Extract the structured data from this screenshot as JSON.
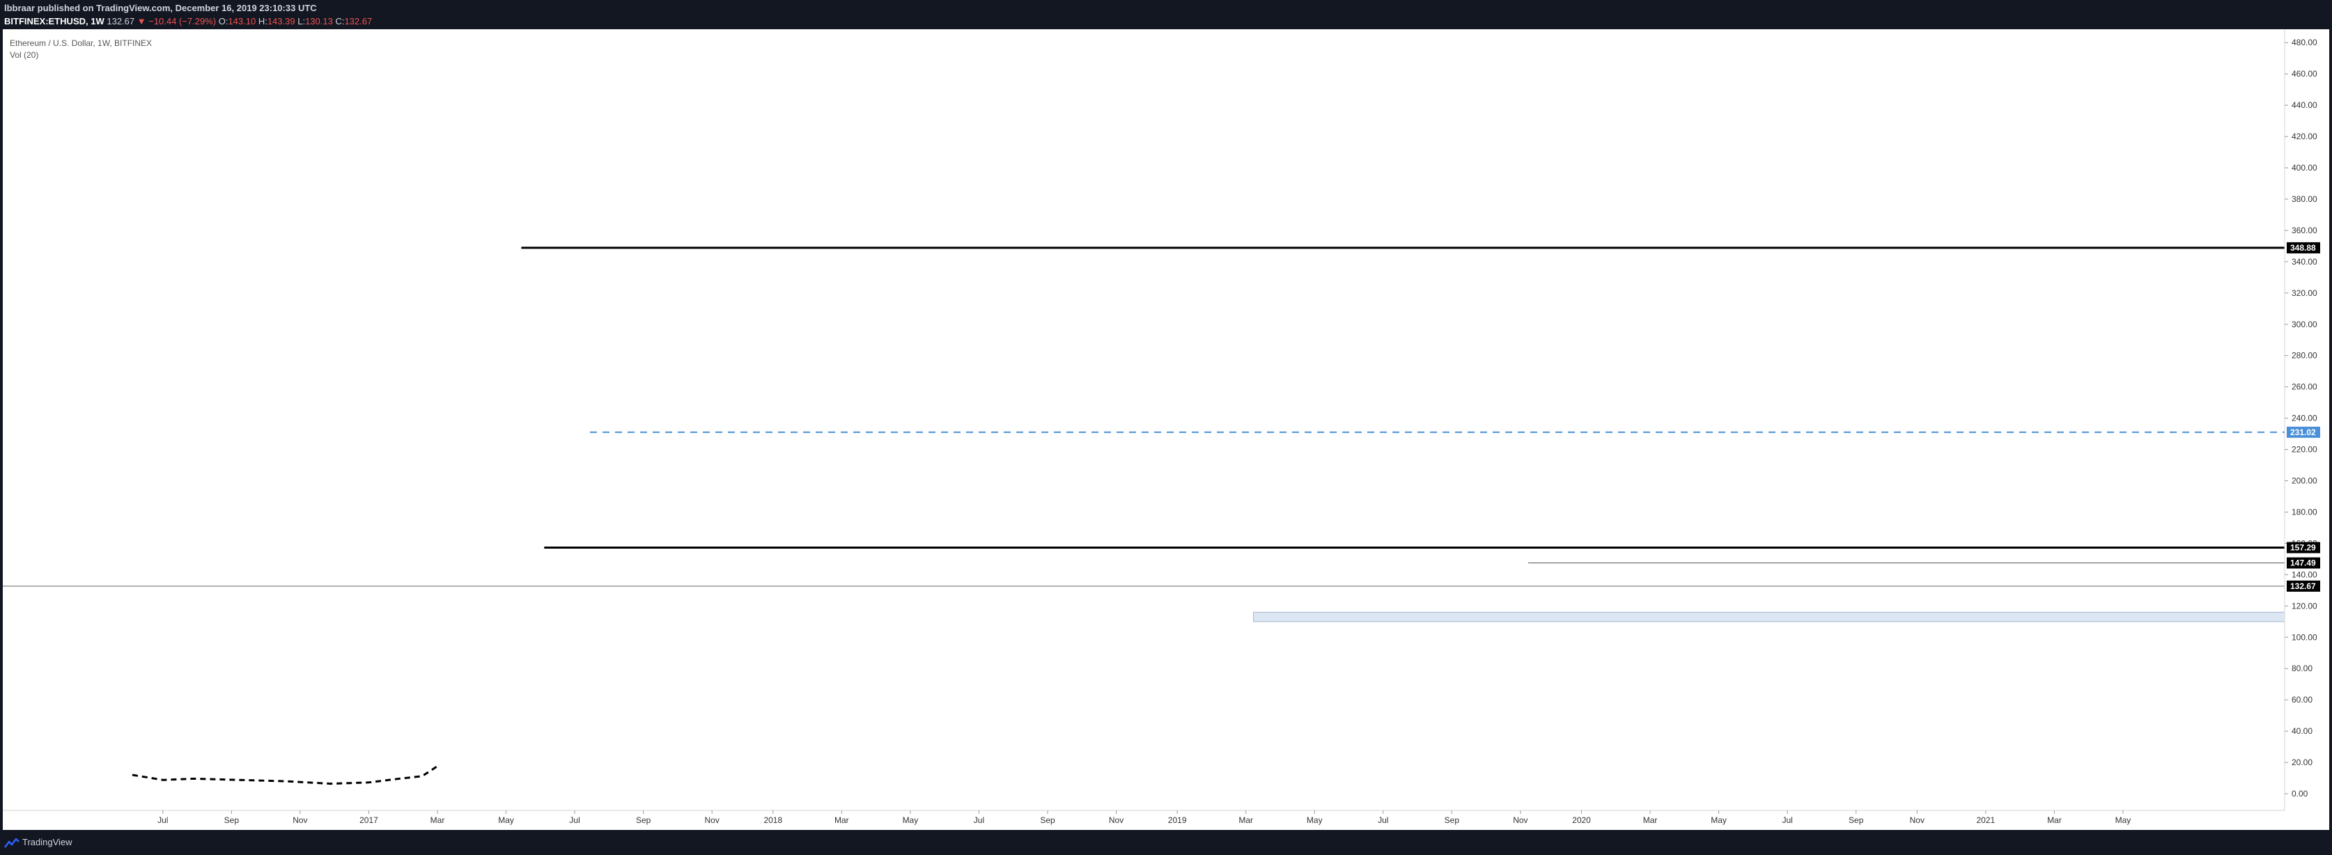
{
  "header": {
    "publisher_line": "lbbraar published on TradingView.com, December 16, 2019 23:10:33 UTC",
    "symbol": "BITFINEX:ETHUSD, 1W",
    "last": "132.67",
    "change": "▼ −10.44 (−7.29%)",
    "ohlc": {
      "o_label": "O:",
      "o": "143.10",
      "h_label": "H:",
      "h": "143.39",
      "l_label": "L:",
      "l": "130.13",
      "c_label": "C:",
      "c": "132.67"
    }
  },
  "legend": {
    "title": "Ethereum / U.S. Dollar, 1W, BITFINEX",
    "volume": "Vol (20)"
  },
  "footer": {
    "brand": "TradingView"
  },
  "colors": {
    "up_volume": "#8fd3c9",
    "down_volume": "#f4a3a3",
    "line_black": "#000000",
    "dashed_line": "#4a90d9",
    "zone_fill": "#dde7f3"
  },
  "chart_data": {
    "type": "candlestick",
    "title": "",
    "ylim": [
      0,
      485
    ],
    "y_ticks": [
      0,
      20,
      40,
      60,
      80,
      100,
      120,
      140,
      160,
      180,
      200,
      220,
      240,
      260,
      280,
      300,
      320,
      340,
      360,
      380,
      400,
      420,
      440,
      460,
      480
    ],
    "y_tick_labels": [
      "0.00",
      "20.00",
      "40.00",
      "60.00",
      "80.00",
      "100.00",
      "120.00",
      "140.00",
      "160.00",
      "180.00",
      "200.00",
      "220.00",
      "240.00",
      "260.00",
      "280.00",
      "300.00",
      "320.00",
      "340.00",
      "360.00",
      "380.00",
      "400.00",
      "420.00",
      "440.00",
      "460.00",
      "480.00"
    ],
    "x_ticks": [
      {
        "label": "Jul",
        "i": 4
      },
      {
        "label": "Sep",
        "i": 13
      },
      {
        "label": "Nov",
        "i": 22
      },
      {
        "label": "2017",
        "i": 31
      },
      {
        "label": "Mar",
        "i": 40
      },
      {
        "label": "May",
        "i": 49
      },
      {
        "label": "Jul",
        "i": 58
      },
      {
        "label": "Sep",
        "i": 67
      },
      {
        "label": "Nov",
        "i": 76
      },
      {
        "label": "2018",
        "i": 84
      },
      {
        "label": "Mar",
        "i": 93
      },
      {
        "label": "May",
        "i": 102
      },
      {
        "label": "Jul",
        "i": 111
      },
      {
        "label": "Sep",
        "i": 120
      },
      {
        "label": "Nov",
        "i": 129
      },
      {
        "label": "2019",
        "i": 137
      },
      {
        "label": "Mar",
        "i": 146
      },
      {
        "label": "May",
        "i": 155
      },
      {
        "label": "Jul",
        "i": 164
      },
      {
        "label": "Sep",
        "i": 173
      },
      {
        "label": "Nov",
        "i": 182
      },
      {
        "label": "2020",
        "i": 190
      },
      {
        "label": "Mar",
        "i": 199
      },
      {
        "label": "May",
        "i": 208
      },
      {
        "label": "Jul",
        "i": 217
      },
      {
        "label": "Sep",
        "i": 226
      },
      {
        "label": "Nov",
        "i": 234
      },
      {
        "label": "2021",
        "i": 243
      },
      {
        "label": "Mar",
        "i": 252
      },
      {
        "label": "May",
        "i": 261
      }
    ],
    "horizontal_lines": [
      {
        "value": 348.88,
        "label": "348.88",
        "style": "solid",
        "start_i": 51
      },
      {
        "value": 231.02,
        "label": "231.02",
        "style": "dashed",
        "start_i": 60
      },
      {
        "value": 157.29,
        "label": "157.29",
        "style": "solid",
        "start_i": 54
      },
      {
        "value": 147.49,
        "label": "147.49",
        "style": "thin",
        "start_i": 183
      },
      {
        "value": 132.67,
        "label": "132.67",
        "style": "current",
        "start_i": 0
      }
    ],
    "zone": {
      "from": 110,
      "to": 116,
      "start_i": 147
    },
    "volume_ma": [
      {
        "i": 0,
        "v": 15
      },
      {
        "i": 4,
        "v": 11
      },
      {
        "i": 8,
        "v": 12
      },
      {
        "i": 14,
        "v": 11
      },
      {
        "i": 20,
        "v": 10
      },
      {
        "i": 26,
        "v": 8
      },
      {
        "i": 31,
        "v": 9
      },
      {
        "i": 35,
        "v": 12
      },
      {
        "i": 38,
        "v": 14
      },
      {
        "i": 40,
        "v": 22
      }
    ],
    "volume_ylim": [
      0,
      700
    ]
  }
}
